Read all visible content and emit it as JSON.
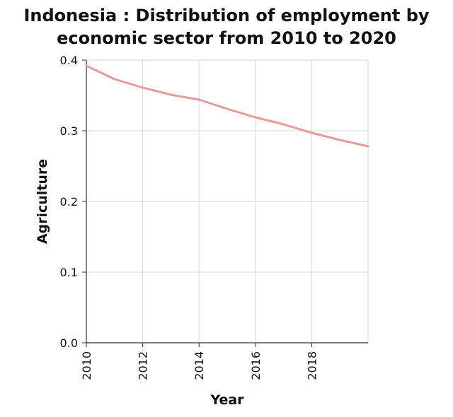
{
  "chart_data": {
    "type": "line",
    "title_lines": [
      "Indonesia : Distribution of employment by",
      "economic sector from 2010 to 2020"
    ],
    "xlabel": "Year",
    "ylabel": "Agriculture",
    "xlim": [
      2010,
      2020
    ],
    "ylim": [
      0.0,
      0.4
    ],
    "x_ticks": [
      2010,
      2012,
      2014,
      2016,
      2018
    ],
    "y_ticks": [
      0.0,
      0.1,
      0.2,
      0.3,
      0.4
    ],
    "grid": true,
    "series": [
      {
        "color": "#e8999a",
        "x": [
          2010,
          2011,
          2012,
          2013,
          2014,
          2015,
          2016,
          2017,
          2018,
          2019,
          2020
        ],
        "y": [
          0.392,
          0.373,
          0.361,
          0.351,
          0.344,
          0.331,
          0.319,
          0.309,
          0.297,
          0.287,
          0.278
        ]
      }
    ]
  },
  "colors": {
    "axis": "#333333",
    "grid": "#d9d9d9",
    "text": "#111111"
  }
}
